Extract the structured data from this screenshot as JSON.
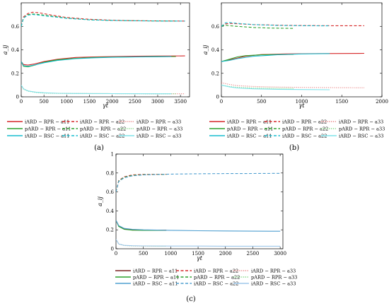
{
  "chart_data": [
    {
      "type": "line",
      "panel_label": "(a)",
      "xlabel": "γt",
      "ylabel": "a_ij",
      "xlim": [
        0,
        3700
      ],
      "ylim": [
        0,
        0.8
      ],
      "xticks": [
        0,
        500,
        1000,
        1500,
        2000,
        2500,
        3000,
        3500
      ],
      "yticks": [
        0,
        0.2,
        0.4,
        0.6
      ],
      "tick_labels_x": [
        "0",
        "500",
        "1000",
        "1500",
        "2000",
        "2500",
        "3000",
        "3500"
      ],
      "tick_labels_y": [
        "0",
        "0.2",
        "0.4",
        "0.6"
      ],
      "grid": false,
      "legend_position": "bottom",
      "series": [
        {
          "name": "iARD − RPR − a11",
          "color": "#d62728",
          "dash": "solid",
          "x": [
            0,
            50,
            150,
            300,
            500,
            800,
            1200,
            1600,
            2000,
            2500,
            3000,
            3600
          ],
          "y": [
            0.3,
            0.275,
            0.27,
            0.28,
            0.3,
            0.32,
            0.335,
            0.34,
            0.343,
            0.345,
            0.347,
            0.348
          ]
        },
        {
          "name": "iARD − RPR − a22",
          "color": "#d62728",
          "dash": "dash",
          "x": [
            0,
            50,
            150,
            250,
            400,
            600,
            1000,
            1500,
            2000,
            2500,
            3000,
            3600
          ],
          "y": [
            0.6,
            0.68,
            0.71,
            0.72,
            0.715,
            0.7,
            0.675,
            0.66,
            0.652,
            0.648,
            0.646,
            0.645
          ]
        },
        {
          "name": "iARD − RPR − a33",
          "color": "#e88080",
          "dash": "dot",
          "x": [
            0,
            50,
            150,
            300,
            500,
            800,
            1200,
            2000,
            3000,
            3600
          ],
          "y": [
            0.1,
            0.07,
            0.05,
            0.04,
            0.033,
            0.03,
            0.028,
            0.027,
            0.026,
            0.026
          ]
        },
        {
          "name": "pARD − RPR − a11",
          "color": "#2ca02c",
          "dash": "solid",
          "x": [
            0,
            50,
            150,
            300,
            500,
            800,
            1200,
            1600,
            2000,
            2500,
            3000,
            3400
          ],
          "y": [
            0.3,
            0.26,
            0.255,
            0.27,
            0.295,
            0.315,
            0.328,
            0.335,
            0.338,
            0.34,
            0.342,
            0.343
          ]
        },
        {
          "name": "pARD − RPR − a22",
          "color": "#2ca02c",
          "dash": "dash",
          "x": [
            0,
            50,
            150,
            250,
            400,
            600,
            1000,
            1500,
            2000,
            2500,
            3000,
            3400
          ],
          "y": [
            0.6,
            0.67,
            0.7,
            0.705,
            0.7,
            0.69,
            0.67,
            0.655,
            0.65,
            0.647,
            0.646,
            0.645
          ]
        },
        {
          "name": "pARD − RPR − a33",
          "color": "#7fd67f",
          "dash": "dot",
          "x": [
            0,
            50,
            150,
            300,
            500,
            800,
            1200,
            2000,
            3000,
            3400
          ],
          "y": [
            0.1,
            0.065,
            0.048,
            0.038,
            0.032,
            0.029,
            0.028,
            0.027,
            0.026,
            0.026
          ]
        },
        {
          "name": "iARD − RSC − a11",
          "color": "#17becf",
          "dash": "solid",
          "x": [
            0,
            50,
            150,
            300,
            500,
            800,
            1200,
            1600,
            2000,
            2500,
            3000,
            3300
          ],
          "y": [
            0.3,
            0.265,
            0.26,
            0.272,
            0.29,
            0.31,
            0.325,
            0.332,
            0.336,
            0.339,
            0.341,
            0.342
          ]
        },
        {
          "name": "iARD − RSC − a22",
          "color": "#17becf",
          "dash": "dash",
          "x": [
            0,
            50,
            150,
            250,
            400,
            600,
            1000,
            1500,
            2000,
            2500,
            3000,
            3600
          ],
          "y": [
            0.6,
            0.67,
            0.695,
            0.7,
            0.695,
            0.685,
            0.668,
            0.655,
            0.65,
            0.647,
            0.645,
            0.645
          ]
        },
        {
          "name": "iARD − RSC − a33",
          "color": "#7fe3ea",
          "dash": "solid",
          "x": [
            0,
            50,
            150,
            300,
            500,
            800,
            1200,
            2000,
            3000,
            3300
          ],
          "y": [
            0.1,
            0.068,
            0.05,
            0.04,
            0.034,
            0.03,
            0.028,
            0.027,
            0.026,
            0.026
          ]
        }
      ]
    },
    {
      "type": "line",
      "panel_label": "(b)",
      "xlabel": "γt",
      "ylabel": "a_ij",
      "xlim": [
        0,
        2000
      ],
      "ylim": [
        0,
        0.8
      ],
      "xticks": [
        0,
        500,
        1000,
        1500,
        2000
      ],
      "yticks": [
        0,
        0.2,
        0.4,
        0.6
      ],
      "tick_labels_x": [
        "0",
        "500",
        "1000",
        "1500",
        "2000"
      ],
      "tick_labels_y": [
        "0",
        "0.2",
        "0.4",
        "0.6"
      ],
      "grid": false,
      "legend_position": "bottom",
      "series": [
        {
          "name": "iARD − RPR − a11",
          "color": "#d62728",
          "dash": "solid",
          "x": [
            0,
            100,
            200,
            300,
            500,
            800,
            1200,
            1500,
            1780
          ],
          "y": [
            0.3,
            0.315,
            0.33,
            0.345,
            0.36,
            0.365,
            0.368,
            0.369,
            0.37
          ]
        },
        {
          "name": "iARD − RPR − a22",
          "color": "#d62728",
          "dash": "dash",
          "x": [
            0,
            50,
            100,
            200,
            400,
            700,
            1000,
            1400,
            1780
          ],
          "y": [
            0.6,
            0.62,
            0.625,
            0.622,
            0.615,
            0.61,
            0.607,
            0.605,
            0.605
          ]
        },
        {
          "name": "iARD − RPR − a33",
          "color": "#e88080",
          "dash": "dot",
          "x": [
            0,
            100,
            200,
            400,
            700,
            1000,
            1400,
            1780
          ],
          "y": [
            0.12,
            0.105,
            0.095,
            0.088,
            0.083,
            0.08,
            0.078,
            0.077
          ]
        },
        {
          "name": "pARD − RPR − a11",
          "color": "#2ca02c",
          "dash": "solid",
          "x": [
            0,
            100,
            200,
            300,
            500,
            700,
            900
          ],
          "y": [
            0.3,
            0.32,
            0.34,
            0.35,
            0.358,
            0.36,
            0.361
          ]
        },
        {
          "name": "pARD − RPR − a22",
          "color": "#2ca02c",
          "dash": "dash",
          "x": [
            0,
            50,
            100,
            200,
            400,
            600,
            900
          ],
          "y": [
            0.6,
            0.61,
            0.605,
            0.6,
            0.59,
            0.585,
            0.582
          ]
        },
        {
          "name": "pARD − RPR − a33",
          "color": "#7fd67f",
          "dash": "dot",
          "x": [
            0,
            100,
            200,
            400,
            700,
            900
          ],
          "y": [
            0.1,
            0.088,
            0.08,
            0.075,
            0.072,
            0.071
          ]
        },
        {
          "name": "iARD − RSC − a11",
          "color": "#17becf",
          "dash": "solid",
          "x": [
            0,
            100,
            200,
            400,
            700,
            1000,
            1350
          ],
          "y": [
            0.3,
            0.31,
            0.325,
            0.345,
            0.358,
            0.365,
            0.368
          ]
        },
        {
          "name": "iARD − RSC − a22",
          "color": "#17becf",
          "dash": "dash",
          "x": [
            0,
            50,
            100,
            200,
            400,
            700,
            1000,
            1350
          ],
          "y": [
            0.6,
            0.63,
            0.632,
            0.625,
            0.615,
            0.608,
            0.605,
            0.604
          ]
        },
        {
          "name": "iARD − RSC − a33",
          "color": "#7fe3ea",
          "dash": "solid",
          "x": [
            0,
            100,
            200,
            400,
            700,
            1000,
            1350
          ],
          "y": [
            0.1,
            0.085,
            0.075,
            0.068,
            0.064,
            0.062,
            0.06
          ]
        }
      ]
    },
    {
      "type": "line",
      "panel_label": "(c)",
      "xlabel": "γt",
      "ylabel": "a_ij",
      "xlim": [
        0,
        3050
      ],
      "ylim": [
        0,
        1.0
      ],
      "xticks": [
        0,
        500,
        1000,
        1500,
        2000,
        2500,
        3000
      ],
      "yticks": [
        0,
        0.2,
        0.4,
        0.6,
        0.8,
        1
      ],
      "tick_labels_x": [
        "0",
        "500",
        "1000",
        "1500",
        "2000",
        "2500",
        "3000"
      ],
      "tick_labels_y": [
        "0",
        "0.2",
        "0.4",
        "0.6",
        "0.8",
        "1"
      ],
      "grid": false,
      "legend_position": "bottom",
      "series": [
        {
          "name": "iARD − RPR − a11",
          "color": "#7a1f1f",
          "dash": "solid",
          "x": [
            0,
            50,
            150,
            300,
            500,
            700,
            920
          ],
          "y": [
            0.3,
            0.24,
            0.21,
            0.2,
            0.198,
            0.197,
            0.197
          ]
        },
        {
          "name": "iARD − RPR − a22",
          "color": "#d62728",
          "dash": "dash",
          "x": [
            0,
            50,
            150,
            300,
            500,
            700,
            920
          ],
          "y": [
            0.6,
            0.72,
            0.76,
            0.78,
            0.785,
            0.786,
            0.787
          ]
        },
        {
          "name": "iARD − RPR − a33",
          "color": "#e88080",
          "dash": "dot",
          "x": [
            0,
            50,
            150,
            300,
            500,
            700,
            920
          ],
          "y": [
            0.1,
            0.05,
            0.035,
            0.03,
            0.028,
            0.027,
            0.027
          ]
        },
        {
          "name": "pARD − RPR − a11",
          "color": "#2ca02c",
          "dash": "solid",
          "x": [
            0,
            50,
            150,
            300,
            500,
            700,
            920
          ],
          "y": [
            0.3,
            0.235,
            0.205,
            0.196,
            0.195,
            0.195,
            0.195
          ]
        },
        {
          "name": "pARD − RPR − a22",
          "color": "#2ca02c",
          "dash": "dash",
          "x": [
            0,
            50,
            150,
            300,
            500,
            700,
            920
          ],
          "y": [
            0.6,
            0.715,
            0.755,
            0.775,
            0.782,
            0.784,
            0.785
          ]
        },
        {
          "name": "pARD − RPR − a33",
          "color": "#7fd67f",
          "dash": "dot",
          "x": [
            0,
            50,
            150,
            300,
            500,
            700,
            920
          ],
          "y": [
            0.1,
            0.05,
            0.034,
            0.03,
            0.028,
            0.027,
            0.027
          ]
        },
        {
          "name": "iARD − RSC − a11",
          "color": "#4f9fd0",
          "dash": "solid",
          "x": [
            0,
            50,
            150,
            300,
            500,
            1000,
            1500,
            2000,
            2500,
            3000
          ],
          "y": [
            0.3,
            0.245,
            0.215,
            0.205,
            0.2,
            0.195,
            0.19,
            0.188,
            0.186,
            0.185
          ]
        },
        {
          "name": "iARD − RSC − a22",
          "color": "#4f9fd0",
          "dash": "dash",
          "x": [
            0,
            50,
            150,
            300,
            500,
            1000,
            1500,
            2000,
            2500,
            3000
          ],
          "y": [
            0.6,
            0.71,
            0.75,
            0.77,
            0.78,
            0.788,
            0.792,
            0.794,
            0.795,
            0.796
          ]
        },
        {
          "name": "iARD − RSC − a33",
          "color": "#9ec7ea",
          "dash": "solid",
          "x": [
            0,
            50,
            150,
            300,
            500,
            1000,
            1500,
            2000,
            2500,
            3000
          ],
          "y": [
            0.1,
            0.05,
            0.036,
            0.032,
            0.03,
            0.028,
            0.028,
            0.027,
            0.027,
            0.027
          ]
        }
      ]
    }
  ]
}
